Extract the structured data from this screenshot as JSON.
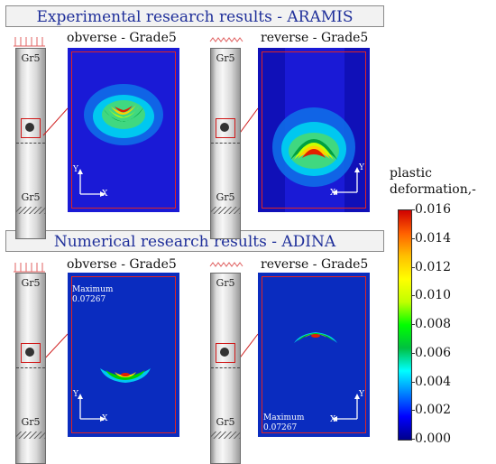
{
  "banners": {
    "experimental": "Experimental research results - ARAMIS",
    "numerical": "Numerical research results - ADINA"
  },
  "panel_titles": {
    "obverse": "obverse - Grade5",
    "reverse": "reverse - Grade5"
  },
  "specimen_label": "Gr5",
  "axes": {
    "y": "Y",
    "x": "X"
  },
  "maximum": {
    "label": "Maximum",
    "value": "0.07267"
  },
  "legend": {
    "title_line1": "plastic",
    "title_line2": "deformation,-",
    "ticks": [
      "0.016",
      "0.014",
      "0.012",
      "0.010",
      "0.008",
      "0.006",
      "0.004",
      "0.002",
      "0.000"
    ],
    "colors": [
      "#d00000",
      "#ff6000",
      "#ffc000",
      "#ffff00",
      "#c0ff00",
      "#00ff00",
      "#00c040",
      "#00ffff",
      "#0080ff",
      "#0000ff",
      "#00008b"
    ]
  }
}
